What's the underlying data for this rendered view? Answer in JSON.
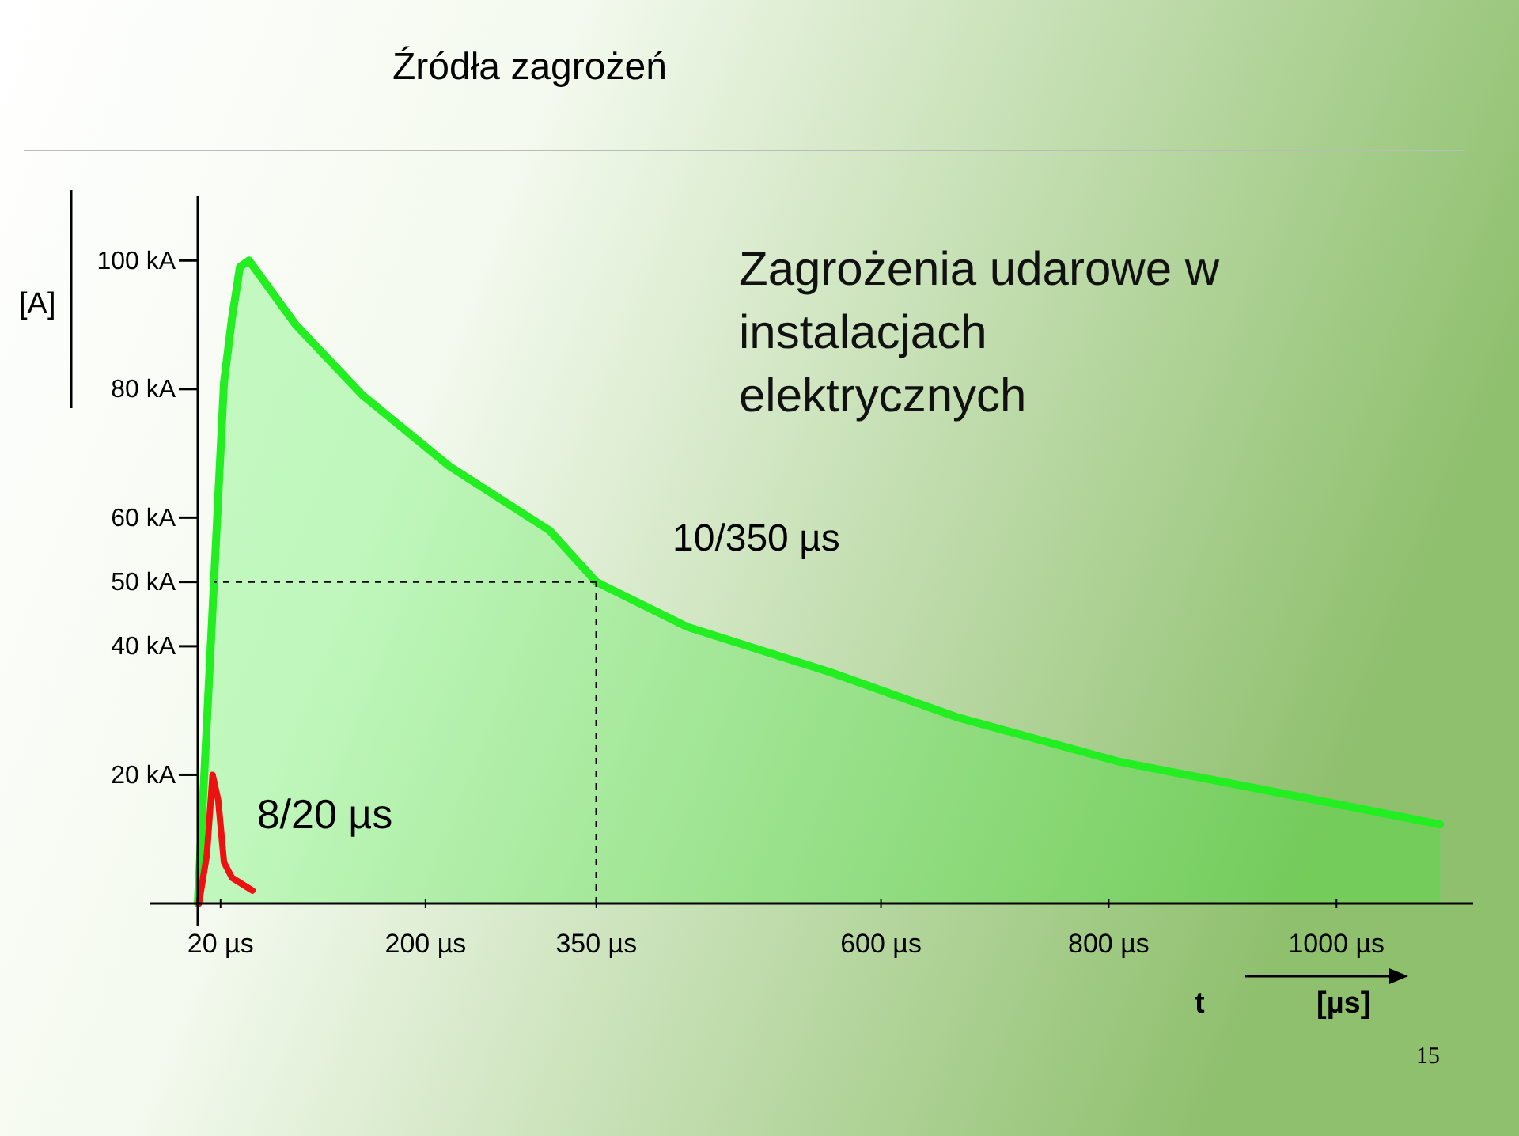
{
  "chart_data": {
    "type": "area",
    "title": "Źródła zagrożeń",
    "subtitle": "Zagrożenia udarowe w instalacjach elektrycznych",
    "ylabel": "[A]",
    "xlabel": "t",
    "annotations": [
      "[µs]",
      "15"
    ],
    "series": [
      {
        "name": "10/350 µs",
        "color": "#22ee22",
        "x": [
          0,
          23,
          30,
          37,
          45,
          86,
          145,
          221,
          309,
          350,
          430,
          555,
          666,
          810,
          941,
          1091
        ],
        "values": [
          0,
          81,
          91,
          99,
          100,
          90,
          79,
          68,
          58,
          50,
          43,
          36,
          29,
          22,
          17.5,
          12.3
        ]
      },
      {
        "name": "8/20 µs",
        "type": "line",
        "color": "#ee1111",
        "x": [
          1,
          8,
          13,
          18,
          23,
          30,
          48
        ],
        "values": [
          0,
          7.6,
          20,
          16,
          6.4,
          4,
          2
        ]
      }
    ],
    "xlim": [
      0,
      1120
    ],
    "ylim": [
      0,
      110
    ],
    "xticks": [
      {
        "value": 20,
        "label": "20 µs"
      },
      {
        "value": 200,
        "label": "200 µs"
      },
      {
        "value": 350,
        "label": "350 µs"
      },
      {
        "value": 600,
        "label": "600 µs"
      },
      {
        "value": 800,
        "label": "800 µs"
      },
      {
        "value": 1000,
        "label": "1000 µs"
      }
    ],
    "yticks": [
      {
        "value": 20,
        "label": "20 kA"
      },
      {
        "value": 40,
        "label": "40 kA"
      },
      {
        "value": 50,
        "label": "50 kA"
      },
      {
        "value": 60,
        "label": "60 kA"
      },
      {
        "value": 80,
        "label": "80 kA"
      },
      {
        "value": 100,
        "label": "100 kA"
      }
    ],
    "ref_lines": [
      {
        "axis": "y",
        "value": 50,
        "line_style": "dashed",
        "color": "#000000"
      },
      {
        "axis": "x",
        "value": 350,
        "line_style": "dashed",
        "color": "#000000"
      }
    ]
  }
}
